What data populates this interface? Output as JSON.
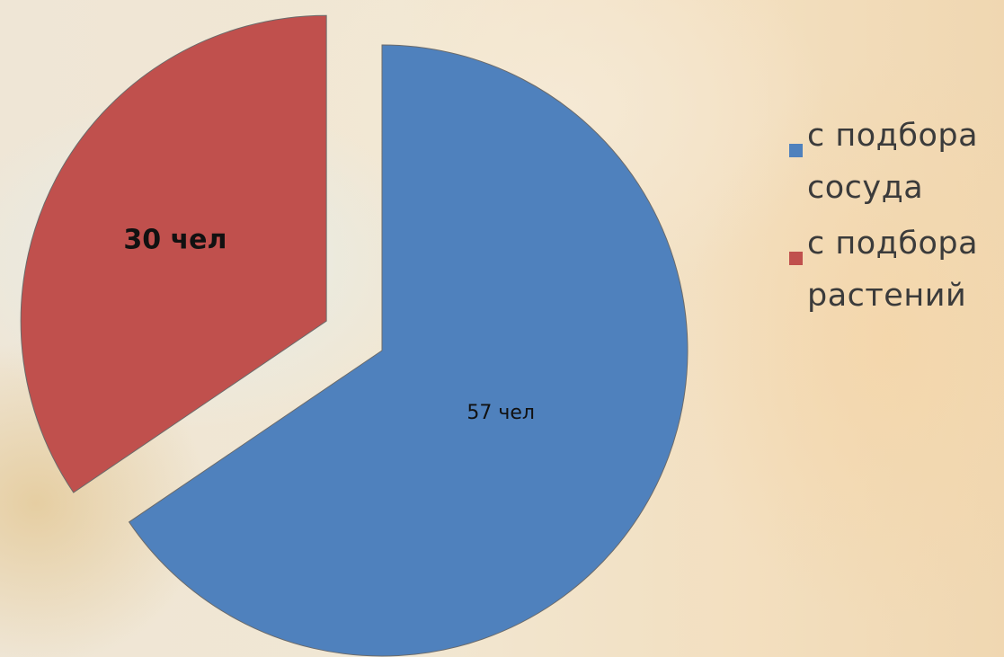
{
  "chart_data": {
    "type": "pie",
    "exploded": true,
    "title": "",
    "legend_position": "right",
    "slices": [
      {
        "name": "с подбора сосуда",
        "value": 57,
        "label": "57 чел",
        "color": "#4f81bd"
      },
      {
        "name": "с подбора растений",
        "value": 30,
        "label": "30 чел",
        "color": "#c0504d"
      }
    ]
  }
}
